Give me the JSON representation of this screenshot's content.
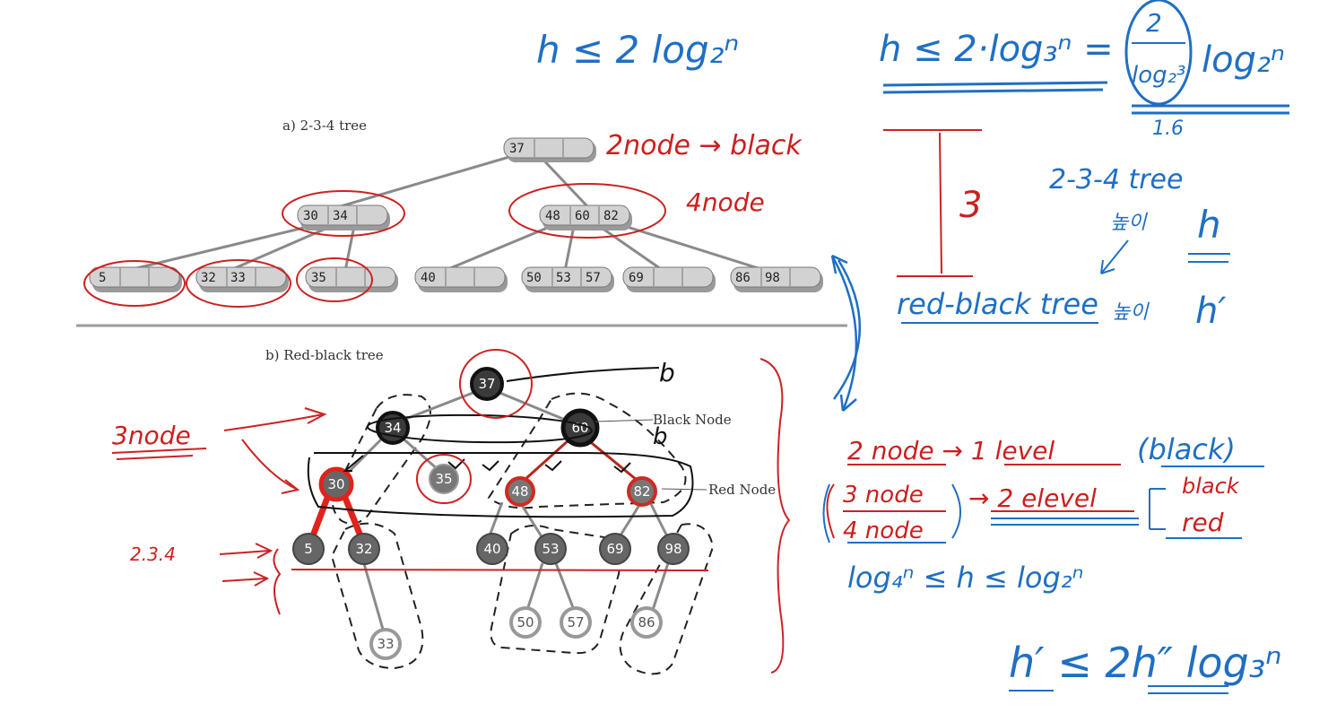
{
  "figure": {
    "caption_a": "a) 2-3-4 tree",
    "caption_b": "b) Red-black tree",
    "black_node_label": "Black Node",
    "red_node_label": "Red Node"
  },
  "tree234": {
    "root": [
      "37"
    ],
    "level1": [
      [
        "30",
        "34"
      ],
      [
        "48",
        "60",
        "82"
      ]
    ],
    "leaves": [
      [
        "5"
      ],
      [
        "32",
        "33"
      ],
      [
        "35"
      ],
      [
        "40"
      ],
      [
        "50",
        "53",
        "57"
      ],
      [
        "69"
      ],
      [
        "86",
        "98"
      ]
    ]
  },
  "rbtree": {
    "nodes": {
      "n37": "37",
      "n34": "34",
      "n60": "60",
      "n30": "30",
      "n35": "35",
      "n48": "48",
      "n82": "82",
      "n5": "5",
      "n32": "32",
      "n40": "40",
      "n53": "53",
      "n69": "69",
      "n98": "98",
      "n33": "33",
      "n50": "50",
      "n57": "57",
      "n86": "86"
    }
  },
  "annotations": {
    "top_formula": "h ≤ 2 log₂ⁿ",
    "right_formula_lhs": "h ≤ 2·log₃ⁿ =",
    "right_formula_frac_num": "2",
    "right_formula_frac_den": "log₂³",
    "right_formula_rhs": "log₂ⁿ",
    "right_formula_approx": "1.6",
    "twonode_black": "2node → black",
    "fournode": "4node",
    "three": "3",
    "tree234_label": "2-3-4 tree",
    "tree234_h_word": "높이",
    "h": "h",
    "rbt_label": "red-black tree",
    "rbt_h_word": "높이",
    "h_prime": "h′",
    "b_top": "b",
    "b_mid": "b",
    "three_node": "3node",
    "two_three_four": "2.3.4",
    "rule1": "2 node → 1 level",
    "rule1_paren": "(black)",
    "rule2a": "3 node",
    "rule2b": "4 node",
    "rule2_arrow": "→ 2 elevel",
    "rule2_black": "black",
    "rule2_red": "red",
    "bounds": "log₄ⁿ  ≤ h ≤ log₂ⁿ",
    "final": "h′ ≤ 2h″ log₃ⁿ"
  }
}
